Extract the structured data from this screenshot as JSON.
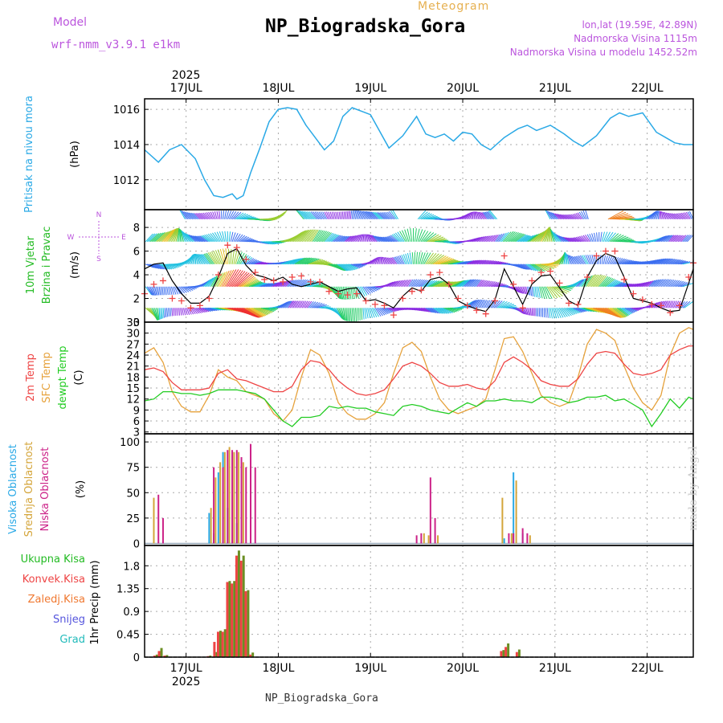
{
  "header": {
    "title": "NP_Biogradska_Gora",
    "subtitle": "Meteogram",
    "model_label": "Model",
    "model_name": "wrf-nmm_v3.9.1 e1km",
    "location": "lon,lat (19.59E, 42.89N)",
    "elevation": "Nadmorska Visina 1115m",
    "model_elevation": "Nadmorska Visina u modelu 1452.52m",
    "footer": "NP_Biogradska_Gora",
    "credit": "made by Angel"
  },
  "colors": {
    "pressure": "#2aa9e6",
    "wind_label": "#22bb22",
    "wind_speed": "#000000",
    "gust": "#ee4444",
    "temp2m": "#ee4444",
    "sfc_temp": "#e6a23c",
    "dewpt": "#22cc22",
    "high_cloud": "#2aa9e6",
    "mid_cloud": "#d4a53a",
    "low_cloud": "#cc2288",
    "total_precip": "#22bb22",
    "conv_precip": "#ee4444",
    "frozen_precip": "#f07830",
    "snow": "#5555dd",
    "hail": "#22bbbb",
    "compass": "#bb55dd"
  },
  "chart_data": [
    {
      "type": "line",
      "id": "pressure",
      "ylabel": [
        "Pritisak na nivou mora",
        "(hPa)"
      ],
      "yticks": [
        1012,
        1014,
        1016
      ],
      "ylim": [
        1010.3,
        1016.6
      ],
      "x_unit": "days since 2025-07-16 00:00",
      "x_range": [
        0.55,
        6.5
      ],
      "x_tick_labels": [
        "17JUL",
        "18JUL",
        "19JUL",
        "20JUL",
        "21JUL",
        "22JUL"
      ],
      "x_top_year": "2025",
      "x": [
        0.55,
        0.7,
        0.82,
        0.95,
        1.1,
        1.2,
        1.3,
        1.4,
        1.5,
        1.55,
        1.62,
        1.7,
        1.8,
        1.9,
        2.0,
        2.1,
        2.2,
        2.3,
        2.5,
        2.6,
        2.7,
        2.8,
        3.0,
        3.2,
        3.35,
        3.5,
        3.6,
        3.7,
        3.8,
        3.9,
        4.0,
        4.1,
        4.2,
        4.3,
        4.45,
        4.6,
        4.7,
        4.8,
        4.95,
        5.1,
        5.2,
        5.3,
        5.45,
        5.6,
        5.7,
        5.8,
        5.95,
        6.1,
        6.2,
        6.3,
        6.4,
        6.5
      ],
      "series": [
        {
          "name": "Pritisak",
          "values": [
            1013.7,
            1013.0,
            1013.7,
            1014.0,
            1013.2,
            1012.0,
            1011.1,
            1011.0,
            1011.2,
            1010.9,
            1011.1,
            1012.4,
            1013.8,
            1015.3,
            1016.0,
            1016.1,
            1016.0,
            1015.1,
            1013.7,
            1014.2,
            1015.6,
            1016.1,
            1015.7,
            1013.8,
            1014.5,
            1015.6,
            1014.6,
            1014.4,
            1014.6,
            1014.2,
            1014.7,
            1014.6,
            1014.0,
            1013.7,
            1014.4,
            1014.9,
            1015.1,
            1014.8,
            1015.1,
            1014.6,
            1014.2,
            1013.9,
            1014.5,
            1015.5,
            1015.8,
            1015.6,
            1015.8,
            1014.7,
            1014.4,
            1014.1,
            1014.0,
            1014.0
          ]
        }
      ]
    },
    {
      "type": "line",
      "id": "wind",
      "ylabel": [
        "10m Vjetar",
        "Brzina i Pravac",
        "(m/s)"
      ],
      "compass_labels": [
        "N",
        "S",
        "W",
        "E"
      ],
      "yticks": [
        0,
        2,
        4,
        6,
        8
      ],
      "ylim": [
        0,
        9.5
      ],
      "x": [
        0.55,
        0.65,
        0.75,
        0.85,
        0.95,
        1.05,
        1.15,
        1.25,
        1.35,
        1.45,
        1.55,
        1.65,
        1.75,
        1.85,
        1.95,
        2.05,
        2.15,
        2.25,
        2.35,
        2.45,
        2.55,
        2.65,
        2.75,
        2.85,
        2.95,
        3.05,
        3.15,
        3.25,
        3.35,
        3.45,
        3.55,
        3.65,
        3.75,
        3.85,
        3.95,
        4.05,
        4.15,
        4.25,
        4.35,
        4.45,
        4.55,
        4.65,
        4.75,
        4.85,
        4.95,
        5.05,
        5.15,
        5.25,
        5.35,
        5.45,
        5.55,
        5.65,
        5.75,
        5.85,
        5.95,
        6.05,
        6.15,
        6.25,
        6.35,
        6.45,
        6.5
      ],
      "series": [
        {
          "name": "Brzina",
          "values": [
            4.5,
            4.9,
            5.0,
            3.5,
            2.4,
            1.6,
            1.6,
            2.2,
            3.8,
            5.8,
            6.2,
            4.8,
            4.0,
            3.8,
            3.5,
            3.8,
            3.2,
            3.0,
            3.2,
            3.4,
            3.0,
            2.6,
            2.8,
            2.9,
            1.8,
            1.9,
            1.6,
            1.2,
            2.2,
            2.9,
            2.6,
            3.6,
            3.8,
            3.2,
            1.8,
            1.4,
            1.1,
            0.9,
            1.9,
            4.5,
            3.0,
            1.5,
            3.2,
            3.9,
            4.0,
            2.9,
            1.8,
            1.4,
            3.8,
            5.2,
            5.8,
            5.5,
            3.8,
            2.0,
            1.8,
            1.6,
            1.2,
            0.9,
            1.0,
            3.3,
            4.5
          ]
        },
        {
          "name": "Udari",
          "values": [
            2.4,
            3.2,
            3.5,
            2.0,
            1.8,
            1.2,
            1.4,
            2.0,
            4.0,
            6.5,
            6.3,
            5.3,
            4.2,
            3.6,
            3.5,
            3.4,
            3.8,
            3.9,
            3.4,
            3.4,
            2.6,
            2.4,
            2.3,
            2.4,
            1.8,
            1.5,
            1.4,
            0.6,
            2.0,
            2.6,
            2.7,
            4.0,
            4.2,
            3.2,
            2.0,
            1.4,
            1.0,
            0.7,
            1.8,
            5.6,
            3.2,
            1.2,
            3.5,
            4.2,
            4.3,
            3.3,
            1.6,
            1.5,
            3.8,
            5.6,
            6.0,
            6.0,
            3.6,
            2.4,
            1.9,
            1.5,
            1.4,
            0.8,
            1.4,
            3.8,
            5.0
          ]
        }
      ]
    },
    {
      "type": "line",
      "id": "temperature",
      "ylabel": [
        "2m Temp",
        "SFC Temp",
        "dewpt Temp",
        "(C)"
      ],
      "yticks": [
        3,
        6,
        9,
        12,
        15,
        18,
        21,
        24,
        27,
        30,
        33
      ],
      "ylim": [
        2.5,
        33
      ],
      "x": [
        0.55,
        0.65,
        0.75,
        0.85,
        0.95,
        1.05,
        1.15,
        1.25,
        1.35,
        1.45,
        1.55,
        1.65,
        1.75,
        1.85,
        1.95,
        2.05,
        2.15,
        2.25,
        2.35,
        2.45,
        2.55,
        2.65,
        2.75,
        2.85,
        2.95,
        3.05,
        3.15,
        3.25,
        3.35,
        3.45,
        3.55,
        3.65,
        3.75,
        3.85,
        3.95,
        4.05,
        4.15,
        4.25,
        4.35,
        4.45,
        4.55,
        4.65,
        4.75,
        4.85,
        4.95,
        5.05,
        5.15,
        5.25,
        5.35,
        5.45,
        5.55,
        5.65,
        5.75,
        5.85,
        5.95,
        6.05,
        6.15,
        6.25,
        6.35,
        6.45,
        6.5
      ],
      "series": [
        {
          "name": "2m Temp",
          "values": [
            20,
            20.5,
            19.5,
            16.5,
            14.5,
            14.5,
            14.5,
            15,
            19,
            20,
            17.5,
            17,
            16,
            15,
            14,
            14,
            15.5,
            20,
            22.5,
            22,
            20,
            17,
            15,
            13.5,
            13,
            13.5,
            14.5,
            17.5,
            21,
            22,
            21,
            19,
            16.5,
            15.5,
            15.5,
            16,
            15,
            14.5,
            17,
            22,
            23.5,
            22,
            20,
            17,
            16,
            15.5,
            15.5,
            17.5,
            21.5,
            24.5,
            25,
            24.5,
            21.5,
            19,
            18.5,
            19,
            20,
            24,
            25.5,
            26.5,
            26.5
          ]
        },
        {
          "name": "SFC Temp",
          "values": [
            24.5,
            26,
            22,
            14,
            10,
            8.5,
            8.5,
            13,
            20,
            18,
            17,
            14,
            13,
            12,
            8,
            6,
            9,
            18,
            25.5,
            24,
            19,
            11,
            8,
            6.5,
            6.5,
            8,
            11,
            19,
            26,
            27.5,
            25,
            18,
            12,
            9,
            8,
            9,
            10,
            12,
            20,
            28.5,
            29,
            25,
            19,
            13,
            11,
            10,
            11,
            18,
            27,
            31,
            30,
            28,
            21,
            15,
            11,
            9,
            13,
            24,
            30,
            31.5,
            31
          ]
        },
        {
          "name": "dewpt Temp",
          "values": [
            11.5,
            12,
            14,
            14,
            13.5,
            13.5,
            13,
            13.5,
            14.5,
            14.5,
            14.5,
            14,
            13.5,
            12,
            9,
            6,
            4.5,
            7,
            7,
            7.5,
            10,
            9.5,
            10,
            9.5,
            9.5,
            8.5,
            8,
            7.5,
            10,
            10.5,
            10,
            9,
            8.5,
            8,
            9.5,
            11,
            10,
            11.5,
            11.5,
            12,
            11.5,
            11.5,
            11,
            12.5,
            12.5,
            12,
            11,
            11.5,
            12.5,
            12.5,
            13,
            11.5,
            12,
            10.5,
            9,
            4.5,
            8,
            12,
            9.5,
            12.5,
            12
          ]
        }
      ]
    },
    {
      "type": "bar",
      "id": "clouds",
      "ylabel": [
        "Visoka Oblacnost",
        "Srednja Oblacnost",
        "Niska Oblacnost",
        "(%)"
      ],
      "yticks": [
        0,
        25,
        50,
        75,
        100
      ],
      "ylim": [
        -2,
        108
      ],
      "series": [
        {
          "name": "Visoka Oblacnost",
          "x": [
            1.25,
            1.3,
            1.35,
            1.4,
            1.45,
            1.55,
            4.45,
            4.55,
            4.65
          ],
          "values": [
            30,
            10,
            70,
            90,
            35,
            20,
            5,
            70,
            10
          ]
        },
        {
          "name": "Srednja Oblacnost",
          "x": [
            0.65,
            1.27,
            1.32,
            1.37,
            1.42,
            1.47,
            1.52,
            1.57,
            1.62,
            3.58,
            3.63,
            3.73,
            4.43,
            4.53,
            4.58,
            4.73
          ],
          "values": [
            45,
            35,
            65,
            80,
            90,
            95,
            90,
            90,
            80,
            10,
            8,
            8,
            45,
            10,
            62,
            8
          ]
        },
        {
          "name": "Niska Oblacnost",
          "x": [
            0.7,
            0.75,
            1.3,
            1.4,
            1.45,
            1.5,
            1.55,
            1.6,
            1.65,
            1.7,
            1.75,
            3.5,
            3.55,
            3.65,
            3.7,
            4.5,
            4.55,
            4.65,
            4.7
          ],
          "values": [
            48,
            25,
            75,
            75,
            92,
            92,
            92,
            85,
            75,
            98,
            75,
            8,
            10,
            65,
            25,
            10,
            10,
            15,
            10
          ]
        }
      ]
    },
    {
      "type": "bar",
      "id": "precip",
      "ylabel": [
        "1hr Precip (mm)"
      ],
      "legend": [
        "Ukupna Kisa",
        "Konvek.Kisa",
        "Zaledj.Kisa",
        "Snijeg",
        "Grad"
      ],
      "yticks": [
        0,
        0.45,
        0.9,
        1.35,
        1.8
      ],
      "ylim": [
        0,
        2.2
      ],
      "x": [
        0.67,
        0.72,
        0.78,
        1.25,
        1.32,
        1.36,
        1.41,
        1.46,
        1.51,
        1.56,
        1.61,
        1.66,
        1.71,
        4.43,
        4.48,
        4.6
      ],
      "series": [
        {
          "name": "Ukupna Kisa",
          "values": [
            0.05,
            0.18,
            0.04,
            0.03,
            0.1,
            0.52,
            0.55,
            1.5,
            1.5,
            2.1,
            2.0,
            1.32,
            0.09,
            0.14,
            0.27,
            0.15
          ]
        },
        {
          "name": "Konvek.Kisa",
          "values": [
            0.03,
            0.12,
            0.03,
            0.02,
            0.3,
            0.5,
            0.5,
            1.48,
            1.45,
            2.0,
            1.9,
            1.3,
            0.05,
            0.12,
            0.2,
            0.1
          ]
        }
      ]
    }
  ]
}
